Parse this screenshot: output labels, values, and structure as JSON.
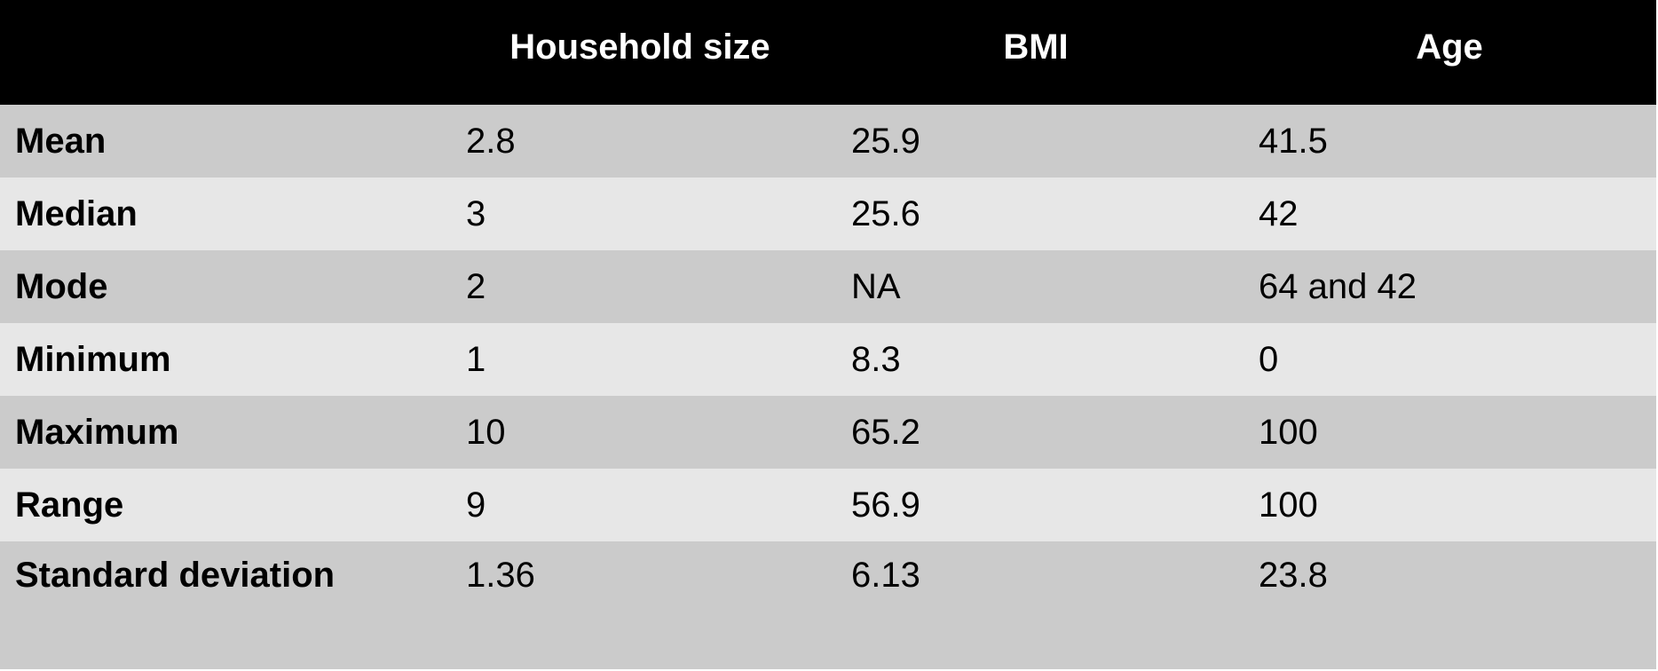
{
  "table": {
    "headers": [
      "",
      "Household size",
      "BMI",
      "Age"
    ],
    "rows": [
      {
        "label": "Mean",
        "values": [
          "2.8",
          "25.9",
          "41.5"
        ]
      },
      {
        "label": "Median",
        "values": [
          "3",
          "25.6",
          "42"
        ]
      },
      {
        "label": "Mode",
        "values": [
          "2",
          "NA",
          "64 and 42"
        ]
      },
      {
        "label": "Minimum",
        "values": [
          "1",
          "8.3",
          "0"
        ]
      },
      {
        "label": "Maximum",
        "values": [
          "10",
          "65.2",
          "100"
        ]
      },
      {
        "label": "Range",
        "values": [
          "9",
          "56.9",
          "100"
        ]
      },
      {
        "label": "Standard deviation",
        "values": [
          "1.36",
          "6.13",
          "23.8"
        ]
      }
    ]
  },
  "colors": {
    "header_background": "#000000",
    "header_text": "#ffffff",
    "row_dark": "#cbcbcb",
    "row_light": "#e7e7e7"
  }
}
